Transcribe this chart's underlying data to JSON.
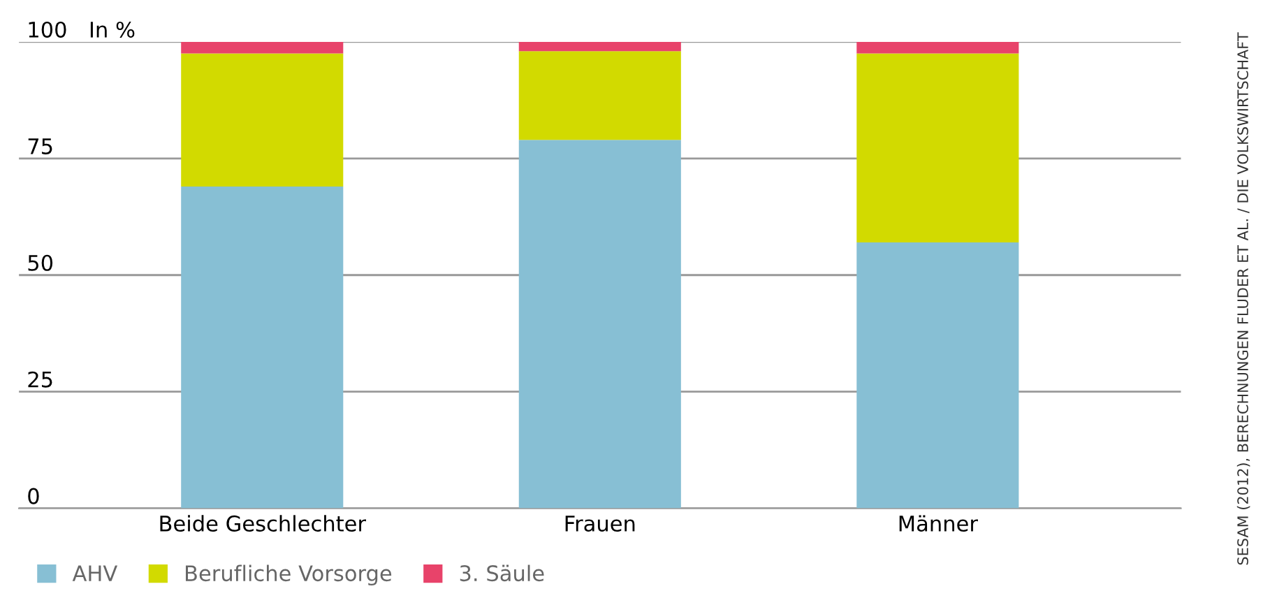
{
  "chart_data": {
    "type": "bar",
    "stacked": true,
    "ylabel": "In %",
    "categories": [
      "Beide Geschlechter",
      "Frauen",
      "Männer"
    ],
    "series": [
      {
        "name": "AHV",
        "color": "#87bfd4",
        "values": [
          69,
          79,
          57
        ]
      },
      {
        "name": "Berufliche Vorsorge",
        "color": "#d2da00",
        "values": [
          28.5,
          19,
          40.5
        ]
      },
      {
        "name": "3. Säule",
        "color": "#e8436a",
        "values": [
          2.5,
          2,
          2.5
        ]
      }
    ],
    "ylim": [
      0,
      100
    ],
    "yticks": [
      0,
      25,
      50,
      75,
      100
    ],
    "grid": "y",
    "legend": "bottom left",
    "annotations": [
      "SESAM (2012), BERECHNUNGEN FLUDER ET AL. / DIE VOLKSWIRTSCHAFT"
    ]
  }
}
